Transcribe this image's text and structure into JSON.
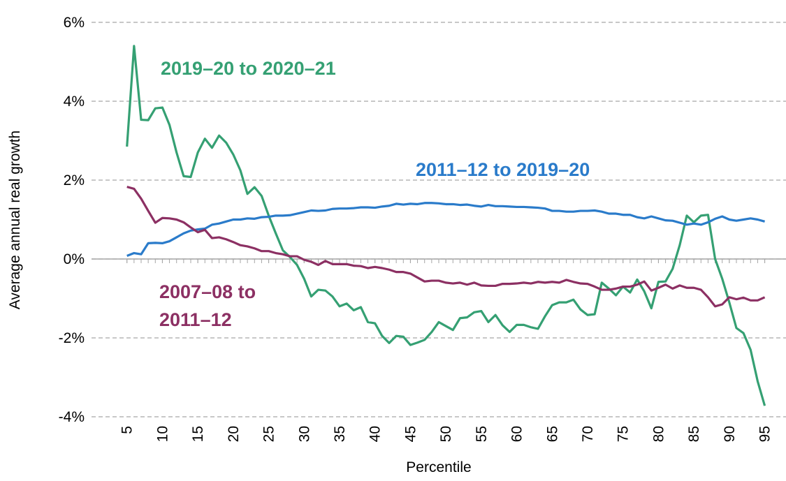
{
  "chart_data": {
    "type": "line",
    "x_label": "Percentile",
    "y_label": "Average annual real growth",
    "x": [
      5,
      6,
      7,
      8,
      9,
      10,
      11,
      12,
      13,
      14,
      15,
      16,
      17,
      18,
      19,
      20,
      21,
      22,
      23,
      24,
      25,
      26,
      27,
      28,
      29,
      30,
      31,
      32,
      33,
      34,
      35,
      36,
      37,
      38,
      39,
      40,
      41,
      42,
      43,
      44,
      45,
      46,
      47,
      48,
      49,
      50,
      51,
      52,
      53,
      54,
      55,
      56,
      57,
      58,
      59,
      60,
      61,
      62,
      63,
      64,
      65,
      66,
      67,
      68,
      69,
      70,
      71,
      72,
      73,
      74,
      75,
      76,
      77,
      78,
      79,
      80,
      81,
      82,
      83,
      84,
      85,
      86,
      87,
      88,
      89,
      90,
      91,
      92,
      93,
      94,
      95
    ],
    "xlim": [
      0,
      98
    ],
    "xticks": [
      5,
      10,
      15,
      20,
      25,
      30,
      35,
      40,
      45,
      50,
      55,
      60,
      65,
      70,
      75,
      80,
      85,
      90,
      95
    ],
    "ylim": [
      -4,
      6
    ],
    "yticks": [
      {
        "value": -4,
        "label": "-4%"
      },
      {
        "value": -2,
        "label": "-2%"
      },
      {
        "value": 0,
        "label": "0%"
      },
      {
        "value": 2,
        "label": "2%"
      },
      {
        "value": 4,
        "label": "4%"
      },
      {
        "value": 6,
        "label": "6%"
      }
    ],
    "grid": true,
    "series": [
      {
        "name": "2019–20 to 2020–21",
        "color": "#35a073",
        "values": [
          2.85,
          5.4,
          3.53,
          3.52,
          3.82,
          3.84,
          3.4,
          2.7,
          2.1,
          2.08,
          2.7,
          3.05,
          2.82,
          3.13,
          2.95,
          2.65,
          2.25,
          1.65,
          1.82,
          1.6,
          1.1,
          0.65,
          0.22,
          0.05,
          -0.15,
          -0.5,
          -0.95,
          -0.78,
          -0.8,
          -0.95,
          -1.2,
          -1.13,
          -1.3,
          -1.22,
          -1.6,
          -1.63,
          -1.95,
          -2.13,
          -1.95,
          -1.97,
          -2.18,
          -2.12,
          -2.05,
          -1.85,
          -1.6,
          -1.7,
          -1.8,
          -1.5,
          -1.48,
          -1.35,
          -1.32,
          -1.6,
          -1.42,
          -1.68,
          -1.85,
          -1.67,
          -1.67,
          -1.73,
          -1.77,
          -1.45,
          -1.17,
          -1.1,
          -1.1,
          -1.03,
          -1.28,
          -1.42,
          -1.4,
          -0.6,
          -0.75,
          -0.92,
          -0.7,
          -0.85,
          -0.52,
          -0.82,
          -1.25,
          -0.58,
          -0.57,
          -0.25,
          0.35,
          1.1,
          0.93,
          1.1,
          1.12,
          0.0,
          -0.5,
          -1.1,
          -1.75,
          -1.88,
          -2.3,
          -3.1,
          -3.72
        ]
      },
      {
        "name": "2011–12 to 2019–20",
        "color": "#2a7bca",
        "values": [
          0.08,
          0.15,
          0.12,
          0.4,
          0.41,
          0.4,
          0.45,
          0.55,
          0.65,
          0.72,
          0.75,
          0.77,
          0.87,
          0.9,
          0.95,
          1.0,
          1.0,
          1.03,
          1.02,
          1.06,
          1.07,
          1.1,
          1.1,
          1.11,
          1.15,
          1.19,
          1.23,
          1.22,
          1.23,
          1.27,
          1.28,
          1.28,
          1.29,
          1.31,
          1.31,
          1.3,
          1.33,
          1.35,
          1.4,
          1.38,
          1.4,
          1.39,
          1.42,
          1.42,
          1.41,
          1.39,
          1.39,
          1.37,
          1.38,
          1.35,
          1.33,
          1.37,
          1.34,
          1.34,
          1.33,
          1.32,
          1.32,
          1.31,
          1.3,
          1.28,
          1.22,
          1.22,
          1.2,
          1.2,
          1.22,
          1.22,
          1.23,
          1.2,
          1.15,
          1.15,
          1.12,
          1.12,
          1.06,
          1.03,
          1.08,
          1.03,
          0.98,
          0.97,
          0.92,
          0.87,
          0.9,
          0.87,
          0.93,
          1.02,
          1.08,
          1.0,
          0.97,
          1.0,
          1.03,
          1.0,
          0.95
        ]
      },
      {
        "name": "2007–08 to 2011–12",
        "color": "#8c3063",
        "values": [
          1.83,
          1.78,
          1.53,
          1.22,
          0.92,
          1.04,
          1.03,
          1.0,
          0.93,
          0.8,
          0.68,
          0.74,
          0.53,
          0.55,
          0.5,
          0.43,
          0.35,
          0.32,
          0.27,
          0.2,
          0.2,
          0.15,
          0.12,
          0.07,
          0.07,
          -0.02,
          -0.07,
          -0.15,
          -0.05,
          -0.13,
          -0.13,
          -0.13,
          -0.17,
          -0.18,
          -0.23,
          -0.2,
          -0.23,
          -0.27,
          -0.33,
          -0.33,
          -0.37,
          -0.47,
          -0.57,
          -0.55,
          -0.55,
          -0.6,
          -0.62,
          -0.6,
          -0.65,
          -0.6,
          -0.67,
          -0.68,
          -0.68,
          -0.63,
          -0.63,
          -0.62,
          -0.6,
          -0.62,
          -0.58,
          -0.6,
          -0.58,
          -0.6,
          -0.53,
          -0.58,
          -0.62,
          -0.63,
          -0.7,
          -0.78,
          -0.78,
          -0.75,
          -0.7,
          -0.7,
          -0.65,
          -0.57,
          -0.8,
          -0.73,
          -0.65,
          -0.75,
          -0.67,
          -0.73,
          -0.73,
          -0.78,
          -0.97,
          -1.2,
          -1.15,
          -0.97,
          -1.02,
          -0.98,
          -1.05,
          -1.05,
          -0.97
        ]
      }
    ]
  }
}
